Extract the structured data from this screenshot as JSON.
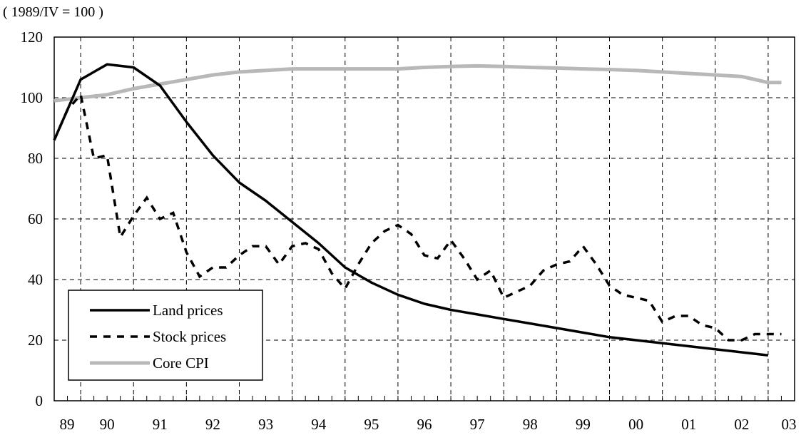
{
  "chart_data": {
    "type": "line",
    "unit_label": "( 1989/IV = 100 )",
    "x_tick_labels": [
      "89",
      "90",
      "91",
      "92",
      "93",
      "94",
      "95",
      "96",
      "97",
      "98",
      "99",
      "00",
      "01",
      "02",
      "03"
    ],
    "y_ticks": [
      0,
      20,
      40,
      60,
      80,
      100,
      120
    ],
    "ylim": [
      0,
      120
    ],
    "xlim": [
      0,
      56
    ],
    "grid": true,
    "legend_position": "bottom-left",
    "series": [
      {
        "name": "Land prices",
        "style": "solid",
        "color": "#000000",
        "x": [
          0,
          2,
          4,
          6,
          8,
          10,
          12,
          14,
          16,
          18,
          20,
          22,
          24,
          26,
          28,
          30,
          32,
          34,
          36,
          38,
          40,
          42,
          44,
          46,
          48,
          50,
          52,
          54
        ],
        "y": [
          86,
          106,
          111,
          110,
          104,
          92,
          81,
          72,
          66,
          59,
          52,
          44,
          39,
          35,
          32,
          30,
          28.5,
          27,
          25.5,
          24,
          22.5,
          21,
          20,
          19,
          18,
          17,
          16,
          15
        ]
      },
      {
        "name": "Stock prices",
        "style": "dashed",
        "color": "#000000",
        "x": [
          0,
          1,
          2,
          3,
          4,
          5,
          6,
          7,
          8,
          9,
          10,
          11,
          12,
          13,
          14,
          15,
          16,
          17,
          18,
          19,
          20,
          21,
          22,
          23,
          24,
          25,
          26,
          27,
          28,
          29,
          30,
          31,
          32,
          33,
          34,
          35,
          36,
          37,
          38,
          39,
          40,
          41,
          42,
          43,
          44,
          45,
          46,
          47,
          48,
          49,
          50,
          51,
          52,
          53,
          54,
          55
        ],
        "y": [
          86,
          96,
          101,
          80,
          81,
          54,
          61,
          67,
          60,
          62,
          49,
          41,
          44,
          44,
          48,
          51,
          51,
          45,
          51,
          52,
          50,
          42,
          37,
          45,
          52,
          56,
          58,
          55,
          48,
          47,
          53,
          47,
          40,
          43,
          34,
          36,
          38,
          43,
          45,
          46,
          51,
          45,
          38,
          35,
          34,
          33,
          26,
          28,
          28,
          25,
          24,
          20,
          20,
          22,
          22,
          22
        ]
      },
      {
        "name": "Core CPI",
        "style": "thick-light",
        "color": "#b8b8b8",
        "x": [
          0,
          2,
          4,
          6,
          8,
          10,
          12,
          14,
          16,
          18,
          20,
          22,
          24,
          26,
          28,
          30,
          32,
          34,
          36,
          38,
          40,
          42,
          44,
          46,
          48,
          50,
          52,
          53,
          54,
          55
        ],
        "y": [
          99,
          100,
          101,
          103,
          104.5,
          106,
          107.5,
          108.5,
          109,
          109.5,
          109.5,
          109.5,
          109.5,
          109.5,
          110,
          110.3,
          110.5,
          110.3,
          110,
          109.8,
          109.5,
          109.3,
          109,
          108.5,
          108,
          107.5,
          107,
          106,
          105,
          105
        ]
      }
    ]
  }
}
